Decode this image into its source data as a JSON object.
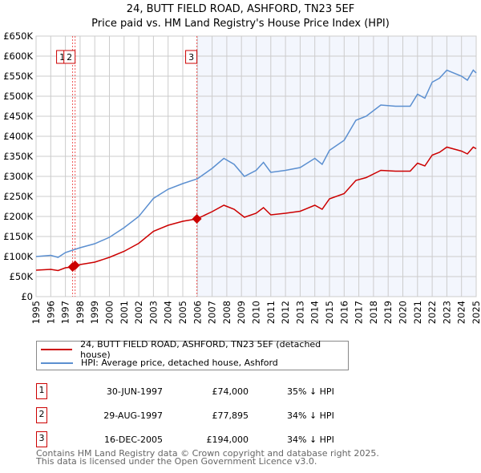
{
  "title": [
    "24, BUTT FIELD ROAD, ASHFORD, TN23 5EF",
    "Price paid vs. HM Land Registry's House Price Index (HPI)"
  ],
  "chart_data": {
    "type": "line",
    "title": "24, BUTT FIELD ROAD, ASHFORD, TN23 5EF — Price paid vs. HM Land Registry's House Price Index (HPI)",
    "xlim": [
      1995,
      2025
    ],
    "ylim": [
      0,
      650000
    ],
    "yticks": [
      "£0",
      "£50K",
      "£100K",
      "£150K",
      "£200K",
      "£250K",
      "£300K",
      "£350K",
      "£400K",
      "£450K",
      "£500K",
      "£550K",
      "£600K",
      "£650K"
    ],
    "xticks": [
      "1995",
      "1996",
      "1997",
      "1998",
      "1999",
      "2000",
      "2001",
      "2002",
      "2003",
      "2004",
      "2005",
      "2006",
      "2007",
      "2008",
      "2009",
      "2010",
      "2011",
      "2012",
      "2013",
      "2014",
      "2015",
      "2016",
      "2017",
      "2018",
      "2019",
      "2020",
      "2021",
      "2022",
      "2023",
      "2024",
      "2025"
    ],
    "grid": true,
    "series": [
      {
        "name": "24, BUTT FIELD ROAD, ASHFORD, TN23 5EF (detached house)",
        "color": "#cc0000",
        "x": [
          1995,
          1996,
          1996.5,
          1997,
          1997.5,
          1998,
          1999,
          2000,
          2001,
          2002,
          2003,
          2004,
          2005,
          2005.96,
          2007,
          2007.8,
          2008.5,
          2009.2,
          2010,
          2010.5,
          2011,
          2012,
          2013,
          2014,
          2014.5,
          2015,
          2016,
          2016.8,
          2017.5,
          2018.5,
          2019.5,
          2020.5,
          2021,
          2021.5,
          2022,
          2022.5,
          2023,
          2024,
          2024.4,
          2024.8,
          2025
        ],
        "y": [
          66000,
          68000,
          65000,
          72000,
          74000,
          80000,
          86000,
          98000,
          113000,
          133000,
          163000,
          178000,
          188000,
          194000,
          212000,
          228000,
          218000,
          198000,
          208000,
          222000,
          204000,
          208000,
          213000,
          228000,
          218000,
          244000,
          257000,
          290000,
          297000,
          315000,
          313000,
          313000,
          333000,
          326000,
          353000,
          360000,
          373000,
          363000,
          356000,
          373000,
          369000
        ]
      },
      {
        "name": "HPI: Average price, detached house, Ashford",
        "color": "#5b8fd0",
        "x": [
          1995,
          1996,
          1996.5,
          1997,
          1997.5,
          1998,
          1999,
          2000,
          2001,
          2002,
          2003,
          2004,
          2005,
          2006,
          2007,
          2007.8,
          2008.5,
          2009.2,
          2010,
          2010.5,
          2011,
          2012,
          2013,
          2014,
          2014.5,
          2015,
          2016,
          2016.8,
          2017.5,
          2018.5,
          2019.5,
          2020.5,
          2021,
          2021.5,
          2022,
          2022.5,
          2023,
          2024,
          2024.4,
          2024.8,
          2025
        ],
        "y": [
          100000,
          103000,
          98000,
          110000,
          116000,
          122000,
          132000,
          148000,
          172000,
          200000,
          245000,
          268000,
          282000,
          294000,
          320000,
          345000,
          330000,
          300000,
          315000,
          335000,
          310000,
          315000,
          322000,
          345000,
          330000,
          365000,
          390000,
          440000,
          450000,
          478000,
          475000,
          475000,
          505000,
          495000,
          535000,
          545000,
          565000,
          550000,
          540000,
          565000,
          558000
        ]
      }
    ],
    "sales": [
      {
        "id": "1",
        "date": "30-JUN-1997",
        "price": "£74,000",
        "x": 1997.49,
        "y": 74000,
        "hpi": "35% ↓ HPI"
      },
      {
        "id": "2",
        "date": "29-AUG-1997",
        "price": "£77,895",
        "x": 1997.66,
        "y": 77895,
        "hpi": "34% ↓ HPI"
      },
      {
        "id": "3",
        "date": "16-DEC-2005",
        "price": "£194,000",
        "x": 2005.96,
        "y": 194000,
        "hpi": "34% ↓ HPI"
      }
    ]
  },
  "footer": [
    "Contains HM Land Registry data © Crown copyright and database right 2025.",
    "This data is licensed under the Open Government Licence v3.0."
  ]
}
